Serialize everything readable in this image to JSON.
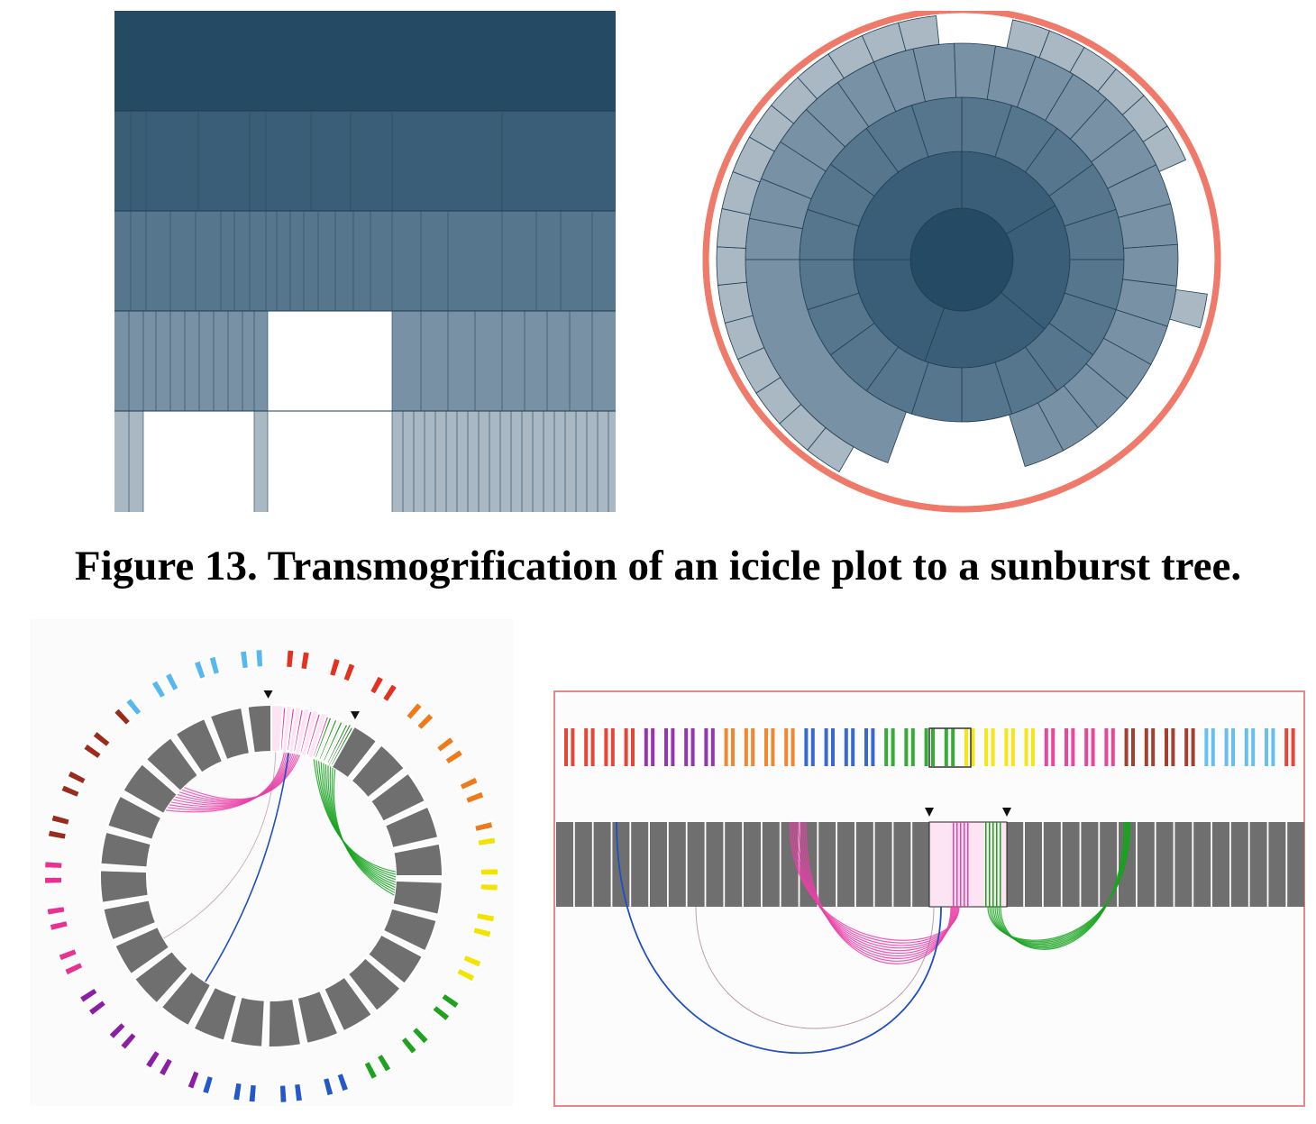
{
  "caption": {
    "text": "Figure 13. Transmogrification of an icicle plot to a sunburst tree."
  },
  "colors": {
    "icicle_levels": [
      "#244a64",
      "#3a5e77",
      "#55768c",
      "#7891a4",
      "#a9b8c3"
    ],
    "sunburst_ring": "#ef7a6a",
    "panel_border": "#e8868a",
    "chromosome_gray": "#6f6f6f",
    "link_pink": "#ea3fa8",
    "link_green": "#17a31f",
    "link_blue": "#1f4fc0",
    "link_mauve": "#9a6a86"
  },
  "panels": {
    "icicle": "icicle-plot",
    "sunburst": "sunburst-tree",
    "circular": "circular-genome-view",
    "linear": "linear-genome-view"
  }
}
